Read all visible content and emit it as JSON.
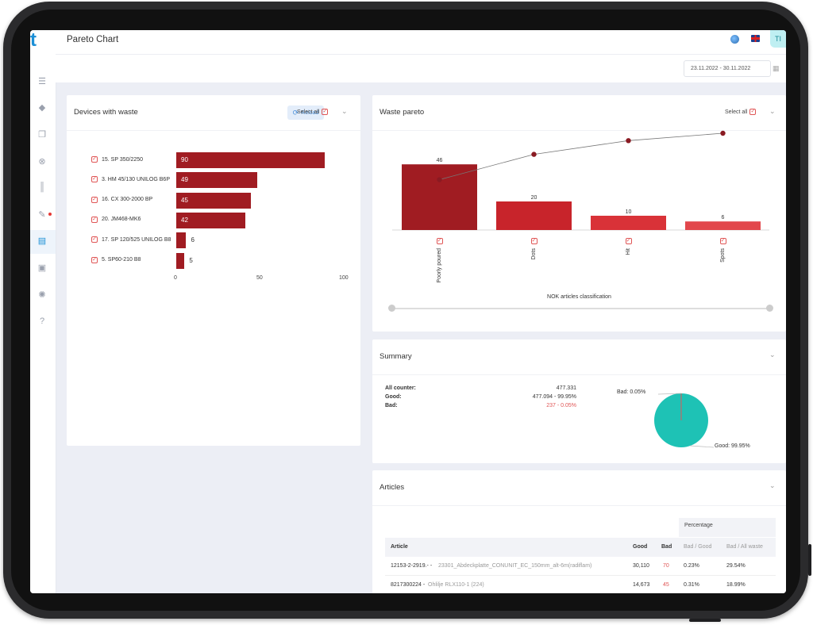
{
  "app": {
    "logo_text": "t",
    "page_title": "Pareto Chart",
    "avatar": "TI",
    "date_range": "23.11.2022 - 30.11.2022"
  },
  "sidebar": {
    "icons": [
      "list-icon",
      "layers-icon",
      "copy-icon",
      "close-circle-icon",
      "books-icon",
      "wrench-icon",
      "clipboard-icon",
      "clipboard-check-icon",
      "target-icon",
      "help-icon"
    ]
  },
  "devices": {
    "title": "Devices with waste",
    "reload_label": "Reload",
    "select_all_label": "Select all",
    "chart_data": {
      "type": "bar",
      "orientation": "horizontal",
      "categories": [
        "15. SP 350/2250",
        "3. HM 45/130 UNILOG B6P",
        "16. CX 300-2000 BP",
        "20. JM468-MK6",
        "17. SP 120/525 UNILOG B8",
        "5. SP60-210 B8"
      ],
      "values": [
        90,
        49,
        45,
        42,
        6,
        5
      ],
      "xlim": [
        0,
        100
      ],
      "xticks": [
        "0",
        "50",
        "100"
      ],
      "color": "#a01c22"
    }
  },
  "waste": {
    "title": "Waste pareto",
    "select_all_label": "Select all",
    "chart_data": {
      "type": "bar",
      "categories": [
        "Poorly poured",
        "Dots",
        "Hit",
        "Spots"
      ],
      "values": [
        46,
        20,
        10,
        6
      ],
      "value_labels": [
        "46",
        "20",
        "10",
        "6"
      ],
      "cumulative_line": [
        0.56,
        0.8,
        0.93,
        1.0
      ],
      "xlabel": "NOK articles classification",
      "bar_colors": [
        "#a01c22",
        "#c8242b",
        "#d93238",
        "#e2474c"
      ]
    }
  },
  "summary": {
    "title": "Summary",
    "rows": [
      {
        "label": "All counter:",
        "value": "477.331"
      },
      {
        "label": "Good:",
        "value": "477.094 - 99.95%"
      },
      {
        "label": "Bad:",
        "value": "237 - 0.05%"
      }
    ],
    "chart_data": {
      "type": "pie",
      "slices": [
        {
          "label": "Good: 99.95%",
          "value": 99.95,
          "color": "#1ec2b5"
        },
        {
          "label": "Bad: 0.05%",
          "value": 0.05,
          "color": "#e05555"
        }
      ]
    }
  },
  "articles": {
    "title": "Articles",
    "group_header": "Percentage",
    "columns": [
      "Article",
      "Good",
      "Bad",
      "Bad / Good",
      "Bad / All waste"
    ],
    "rows": [
      {
        "code": "12153-2-2919.- -",
        "name": "23301_Abdeckplatte_CONUNIT_EC_150mm_alt-6m(radiflam)",
        "good": "30,110",
        "bad": "70",
        "bad_good": "0.23%",
        "bad_all": "29.54%"
      },
      {
        "code": "8217300224 -",
        "name": "Ohlilje RLX110-1 (224)",
        "good": "14,673",
        "bad": "45",
        "bad_good": "0.31%",
        "bad_all": "18.99%"
      }
    ]
  }
}
